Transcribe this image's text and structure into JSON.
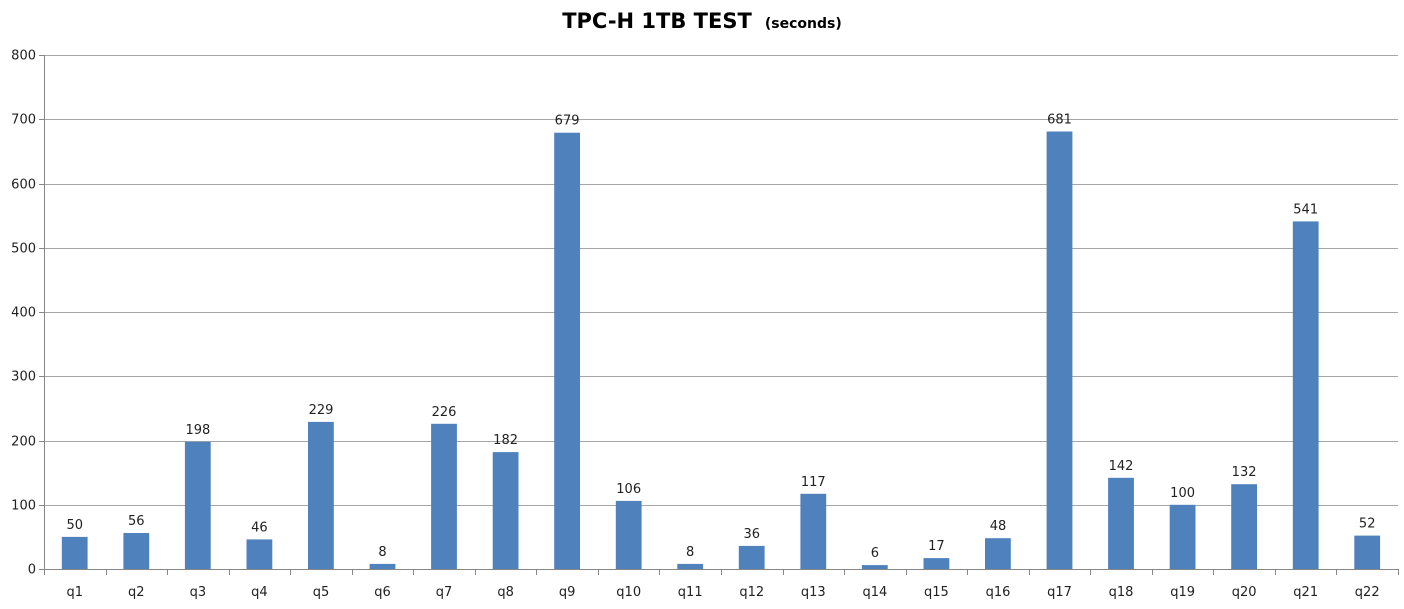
{
  "chart_data": {
    "type": "bar",
    "title": "TPC-H 1TB TEST",
    "subtitle": "(seconds)",
    "xlabel": "",
    "ylabel": "",
    "categories": [
      "q1",
      "q2",
      "q3",
      "q4",
      "q5",
      "q6",
      "q7",
      "q8",
      "q9",
      "q10",
      "q11",
      "q12",
      "q13",
      "q14",
      "q15",
      "q16",
      "q17",
      "q18",
      "q19",
      "q20",
      "q21",
      "q22"
    ],
    "values": [
      50,
      56,
      198,
      46,
      229,
      8,
      226,
      182,
      679,
      106,
      8,
      36,
      117,
      6,
      17,
      48,
      681,
      142,
      100,
      132,
      541,
      52
    ],
    "ylim": [
      0,
      800
    ],
    "yticks": [
      "0",
      "100",
      "200",
      "300",
      "400",
      "500",
      "600",
      "700",
      "800"
    ],
    "ytick_values": [
      0,
      100,
      200,
      300,
      400,
      500,
      600,
      700,
      800
    ],
    "grid": true,
    "legend": "none",
    "bar_color": "#4f81bd",
    "data_labels": true
  }
}
